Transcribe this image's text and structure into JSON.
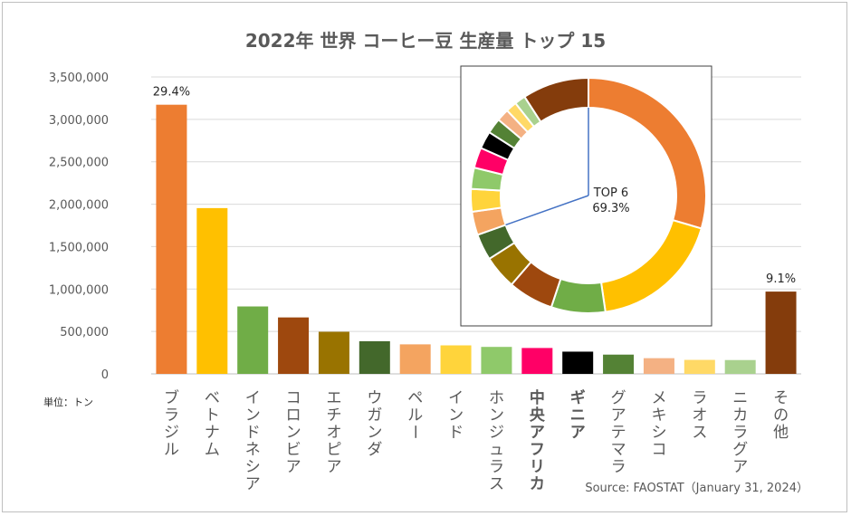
{
  "title": "2022年 世界 コーヒー豆 生産量 トップ 15",
  "unit_label": "単位：トン",
  "source": "Source: FAOSTAT（January 31, 2024）",
  "chart_data": [
    {
      "type": "bar",
      "categories": [
        "ブラジル",
        "ベトナム",
        "インドネシア",
        "コロンビア",
        "エチオピア",
        "ウガンダ",
        "ペルー",
        "インド",
        "ホンジュラス",
        "中央アフリカ",
        "ギニア",
        "グアテマラ",
        "メキシコ",
        "ラオス",
        "ニカラグア",
        "その他"
      ],
      "values": [
        3172562,
        1953990,
        794762,
        665400,
        496200,
        385000,
        348000,
        336000,
        318000,
        305000,
        262000,
        227000,
        185000,
        165000,
        163000,
        970000
      ],
      "colors": [
        "#ED7D31",
        "#FFC000",
        "#70AD47",
        "#9E480E",
        "#997300",
        "#43682B",
        "#F4A460",
        "#FFD43B",
        "#8FC96A",
        "#FF0066",
        "#000000",
        "#548235",
        "#F4B183",
        "#FFD966",
        "#A9D18E",
        "#843C0C"
      ],
      "data_labels": {
        "0": "29.4%",
        "15": "9.1%"
      },
      "highlight_labels": {
        "9": "red-bold",
        "10": "black-bold"
      },
      "yticks": [
        "0",
        "500,000",
        "1,000,000",
        "1,500,000",
        "2,000,000",
        "2,500,000",
        "3,000,000",
        "3,500,000"
      ],
      "ylim": [
        0,
        3500000
      ],
      "grid": true
    },
    {
      "type": "pie",
      "variant": "doughnut",
      "values": [
        29.4,
        18.1,
        7.4,
        6.2,
        4.6,
        3.6,
        3.2,
        3.1,
        2.9,
        2.8,
        2.4,
        2.1,
        1.7,
        1.5,
        1.5,
        9.1
      ],
      "colors": [
        "#ED7D31",
        "#FFC000",
        "#70AD47",
        "#9E480E",
        "#997300",
        "#43682B",
        "#F4A460",
        "#FFD43B",
        "#8FC96A",
        "#FF0066",
        "#000000",
        "#548235",
        "#F4B183",
        "#FFD966",
        "#A9D18E",
        "#843C0C"
      ],
      "center_label": "TOP 6",
      "center_value": "69.3%"
    }
  ]
}
